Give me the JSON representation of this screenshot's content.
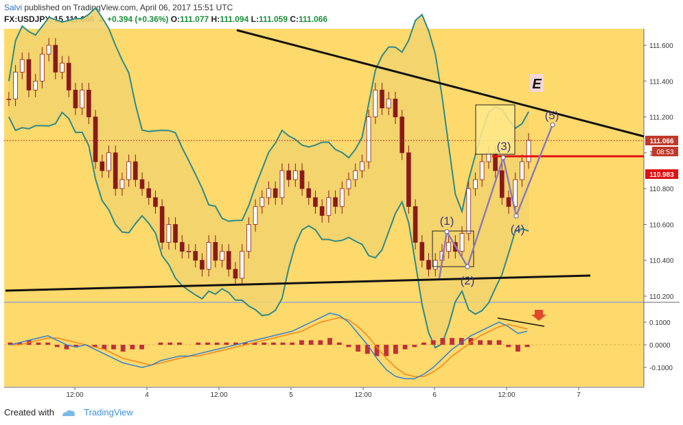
{
  "header": {
    "author": "Salvi",
    "published_text": "published on TradingView.com, April 06, 2017 15:51 UTC",
    "symbol": "FX:USDJPY, 15",
    "last": "111.066",
    "change": "+0.394 (+0.36%)",
    "o_label": "O:",
    "o_value": "111.077",
    "h_label": "H:",
    "h_value": "111.094",
    "l_label": "L:",
    "l_value": "111.059",
    "c_label": "C:",
    "c_value": "111.066"
  },
  "footer": {
    "created_with": "Created with",
    "brand": "TradingView"
  },
  "colors": {
    "background": "#fed96b",
    "band_fill": "#f2d36e",
    "band_line": "#2b8a8a",
    "candle": "#8b1a1a",
    "trendline": "#111111",
    "resistance": "#e01010",
    "wave": "#8c7ab8",
    "macd": "#2b7fd8",
    "signal": "#f0861a",
    "hist_pos": "#c0303a"
  },
  "chart_data": [
    {
      "type": "candlestick",
      "title": "",
      "yaxis_ticks": [
        "111.600",
        "111.400",
        "111.200",
        "111.000",
        "110.800",
        "110.600",
        "110.400",
        "110.200"
      ],
      "ylim": [
        110.15,
        111.75
      ],
      "xaxis_ticks": [
        "12:00",
        "4",
        "12:00",
        "5",
        "12:00",
        "6",
        "12:00",
        "7"
      ],
      "price_labels": [
        {
          "text": "111.066",
          "value": 111.066
        },
        {
          "text": "08:53",
          "value": 111.0
        },
        {
          "text": "110.983",
          "value": 110.983
        }
      ],
      "annotations": [
        "E",
        "(1)",
        "(2)",
        "(3)",
        "(4)",
        "(5)"
      ],
      "elliott_waves": [
        {
          "label": "(1)",
          "x": "6 00:30",
          "y": 110.56
        },
        {
          "label": "(2)",
          "x": "6 07:00",
          "y": 110.36
        },
        {
          "label": "(3)",
          "x": "6 12:00",
          "y": 111.0
        },
        {
          "label": "(4)",
          "x": "6 15:00",
          "y": 110.66
        },
        {
          "label": "(5)",
          "x": "6 22:00",
          "y": 111.13
        }
      ],
      "close_series": [
        111.3,
        111.45,
        111.52,
        111.35,
        111.4,
        111.55,
        111.6,
        111.45,
        111.5,
        111.35,
        111.25,
        111.35,
        111.2,
        110.95,
        110.9,
        111.0,
        110.8,
        110.85,
        110.95,
        110.85,
        110.8,
        110.75,
        110.7,
        110.5,
        110.6,
        110.5,
        110.45,
        110.45,
        110.4,
        110.35,
        110.5,
        110.4,
        110.45,
        110.35,
        110.3,
        110.45,
        110.6,
        110.7,
        110.75,
        110.8,
        110.75,
        110.9,
        110.85,
        110.9,
        110.8,
        110.75,
        110.7,
        110.65,
        110.75,
        110.7,
        110.8,
        110.85,
        110.9,
        110.95,
        111.2,
        111.35,
        111.25,
        111.3,
        111.2,
        111.0,
        110.7,
        110.5,
        110.4,
        110.35,
        110.4,
        110.45,
        110.5,
        110.45,
        110.55,
        110.8,
        110.85,
        110.95,
        111.0,
        110.9,
        110.75,
        110.7,
        110.85,
        110.95,
        111.07
      ]
    },
    {
      "type": "line",
      "title": "",
      "yaxis_ticks": [
        "0.1000",
        "0.0000",
        "-0.1000"
      ],
      "ylim": [
        -0.17,
        0.17
      ],
      "series": [
        {
          "values": [
            0.0,
            0.01,
            0.02,
            0.03,
            0.04,
            0.02,
            0.0,
            -0.01,
            0.0,
            -0.02,
            -0.04,
            -0.06,
            -0.08,
            -0.09,
            -0.1,
            -0.09,
            -0.07,
            -0.06,
            -0.05,
            -0.05,
            -0.04,
            -0.03,
            -0.02,
            -0.01,
            0.0,
            0.01,
            0.02,
            0.03,
            0.04,
            0.05,
            0.06,
            0.08,
            0.1,
            0.12,
            0.14,
            0.13,
            0.1,
            0.05,
            0.0,
            -0.06,
            -0.11,
            -0.14,
            -0.15,
            -0.15,
            -0.13,
            -0.1,
            -0.06,
            -0.02,
            0.01,
            0.04,
            0.06,
            0.08,
            0.1,
            0.08,
            0.05,
            0.06
          ]
        },
        {
          "values": [
            0.0,
            0.0,
            0.01,
            0.02,
            0.03,
            0.03,
            0.02,
            0.01,
            0.0,
            -0.01,
            -0.02,
            -0.04,
            -0.06,
            -0.07,
            -0.08,
            -0.09,
            -0.08,
            -0.07,
            -0.06,
            -0.05,
            -0.05,
            -0.04,
            -0.03,
            -0.02,
            -0.01,
            0.0,
            0.01,
            0.02,
            0.03,
            0.04,
            0.05,
            0.06,
            0.08,
            0.1,
            0.11,
            0.12,
            0.11,
            0.08,
            0.04,
            -0.01,
            -0.06,
            -0.1,
            -0.13,
            -0.14,
            -0.14,
            -0.12,
            -0.09,
            -0.05,
            -0.02,
            0.01,
            0.04,
            0.06,
            0.08,
            0.09,
            0.08,
            0.07
          ]
        }
      ],
      "histogram": [
        0.01,
        0.01,
        0.02,
        0.01,
        0.01,
        -0.01,
        -0.02,
        -0.01,
        0.0,
        -0.01,
        -0.02,
        -0.02,
        -0.03,
        -0.02,
        -0.02,
        0.0,
        0.01,
        0.01,
        0.01,
        0.0,
        0.01,
        0.01,
        0.01,
        0.01,
        0.01,
        0.01,
        0.01,
        0.01,
        0.01,
        0.01,
        0.01,
        0.02,
        0.02,
        0.02,
        0.03,
        0.01,
        -0.01,
        -0.03,
        -0.04,
        -0.05,
        -0.05,
        -0.04,
        -0.02,
        -0.01,
        0.01,
        0.02,
        0.03,
        0.03,
        0.03,
        0.03,
        0.02,
        0.02,
        0.02,
        -0.01,
        -0.03,
        -0.01
      ]
    }
  ]
}
